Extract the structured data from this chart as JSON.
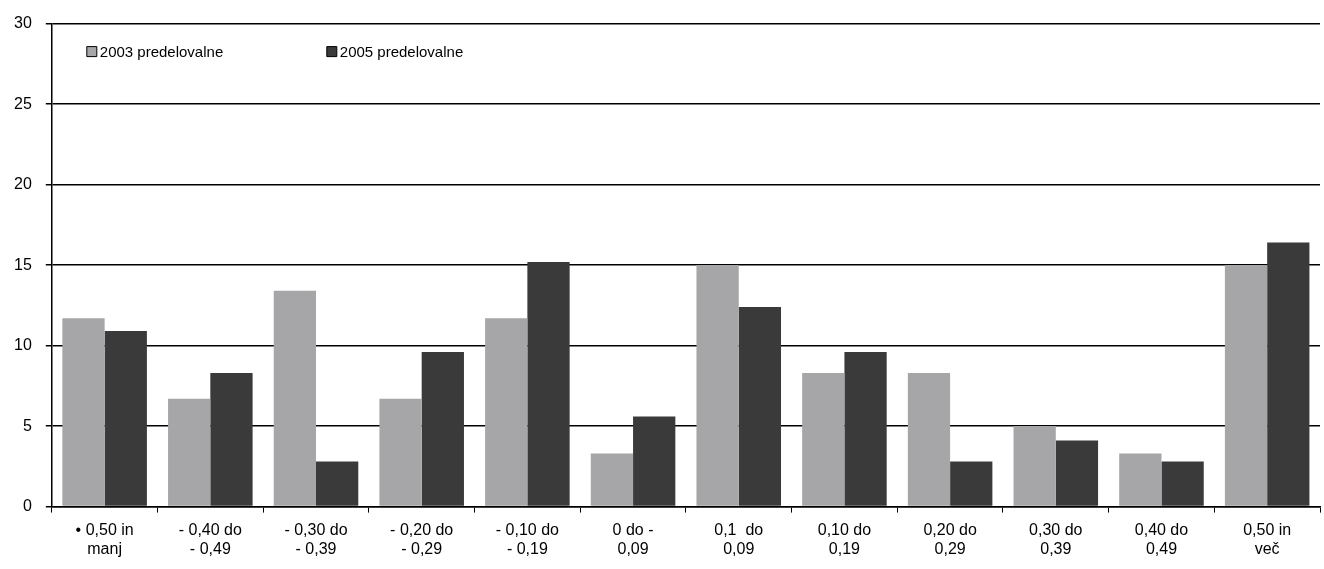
{
  "chart_data": {
    "type": "bar",
    "categories": [
      "• 0,50 in\nmanj",
      "- 0,40 do\n- 0,49",
      "- 0,30 do\n- 0,39",
      "- 0,20 do\n- 0,29",
      "- 0,10 do\n- 0,19",
      "0 do -\n0,09",
      "0,1  do\n0,09",
      "0,10 do\n0,19",
      "0,20 do\n0,29",
      "0,30 do\n0,39",
      "0,40 do\n0,49",
      "0,50 in\nveč"
    ],
    "series": [
      {
        "name": "2003 predelovalne",
        "color": "#a6a6a8",
        "values": [
          11.7,
          6.7,
          13.4,
          6.7,
          11.7,
          3.3,
          15,
          8.3,
          8.3,
          5,
          3.3,
          15
        ]
      },
      {
        "name": "2005 predelovalne",
        "color": "#3a3a3a",
        "values": [
          10.9,
          8.3,
          2.8,
          9.6,
          15.2,
          5.6,
          12.4,
          9.6,
          2.8,
          4.1,
          2.8,
          16.4
        ]
      }
    ],
    "ylim": [
      0,
      30
    ],
    "yticks": [
      0,
      5,
      10,
      15,
      20,
      25,
      30
    ],
    "grid": "y",
    "legend": "top left"
  }
}
